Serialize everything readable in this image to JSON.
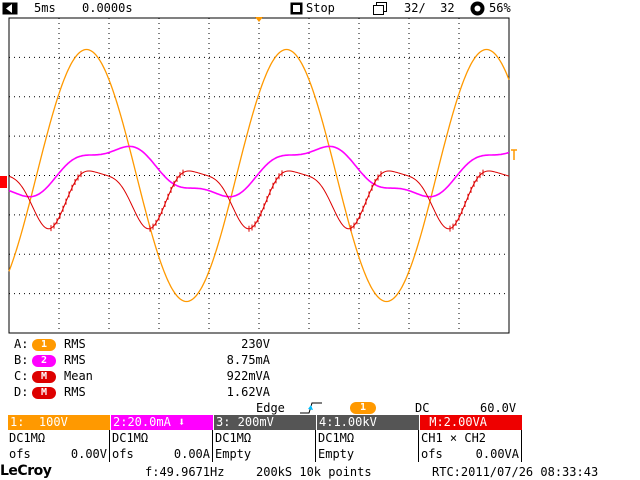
{
  "top": {
    "timebase": "5ms",
    "delay": "0.0000s",
    "run_state": "Stop",
    "acq_count": "32/  32",
    "battery": "56%",
    "menu_icon": "chevron-left-icon",
    "stop_icon": "stop-square-icon",
    "acq_icon": "stack-icon",
    "battery_icon": "gear-sun-icon"
  },
  "measurements": [
    {
      "label": "A:",
      "source": "1",
      "type": "RMS",
      "value": "230V",
      "color": "#ff9900"
    },
    {
      "label": "B:",
      "source": "2",
      "type": "RMS",
      "value": "8.75mA",
      "color": "#ff00ff"
    },
    {
      "label": "C:",
      "source": "M",
      "type": "Mean",
      "value": "922mVA",
      "color": "#ff0000"
    },
    {
      "label": "D:",
      "source": "M",
      "type": "RMS",
      "value": "1.62VA",
      "color": "#ff0000"
    }
  ],
  "trigger": {
    "mode": "Edge",
    "source": "1",
    "coupling": "DC",
    "level": "60.0V"
  },
  "channels": [
    {
      "header": "1:  100V",
      "l1": "DC1MΩ",
      "l2a": "ofs",
      "l2b": "0.00V",
      "color": "#ff9900",
      "text": "#ffffff"
    },
    {
      "header": "2:20.0mA ⬇",
      "l1": "DC1MΩ",
      "l2a": "ofs",
      "l2b": "0.00A",
      "color": "#ff00ff",
      "text": "#ffffff"
    },
    {
      "header": "3: 200mV",
      "l1": "DC1MΩ",
      "l2a": "Empty",
      "l2b": "",
      "color": "#555555",
      "text": "#ffffff"
    },
    {
      "header": "4:1.00kV",
      "l1": "DC1MΩ",
      "l2a": "Empty",
      "l2b": "",
      "color": "#555555",
      "text": "#ffffff"
    },
    {
      "header": " M:2.00VA",
      "l1": "CH1 × CH2",
      "l2a": "ofs",
      "l2b": "0.00VA",
      "color": "#ee0000",
      "text": "#ffffff"
    }
  ],
  "bottom": {
    "brand": "LeCroy",
    "frequency": "f:49.9671Hz",
    "points": "200kS 10k points",
    "rtc": "RTC:2011/07/26 08:33:43"
  },
  "colors": {
    "ch1": "#ff9900",
    "ch2": "#ff00ff",
    "math": "#dd0000",
    "grid": "#000000"
  },
  "chart_data": {
    "type": "line",
    "series": [
      {
        "name": "1",
        "shape": "sine",
        "amplitude_div": 3.2,
        "period_ms": 20,
        "phase": "peak at 3.5ms"
      },
      {
        "name": "2",
        "shape": "distorted-sine",
        "amplitude_div": 0.75,
        "period_ms": 20
      },
      {
        "name": "M",
        "shape": "product",
        "amplitude_div": 2.0,
        "period_ms": 10
      }
    ],
    "grid": true,
    "x_divisions": 10,
    "y_divisions": 8,
    "timebase_per_div": "5ms"
  }
}
